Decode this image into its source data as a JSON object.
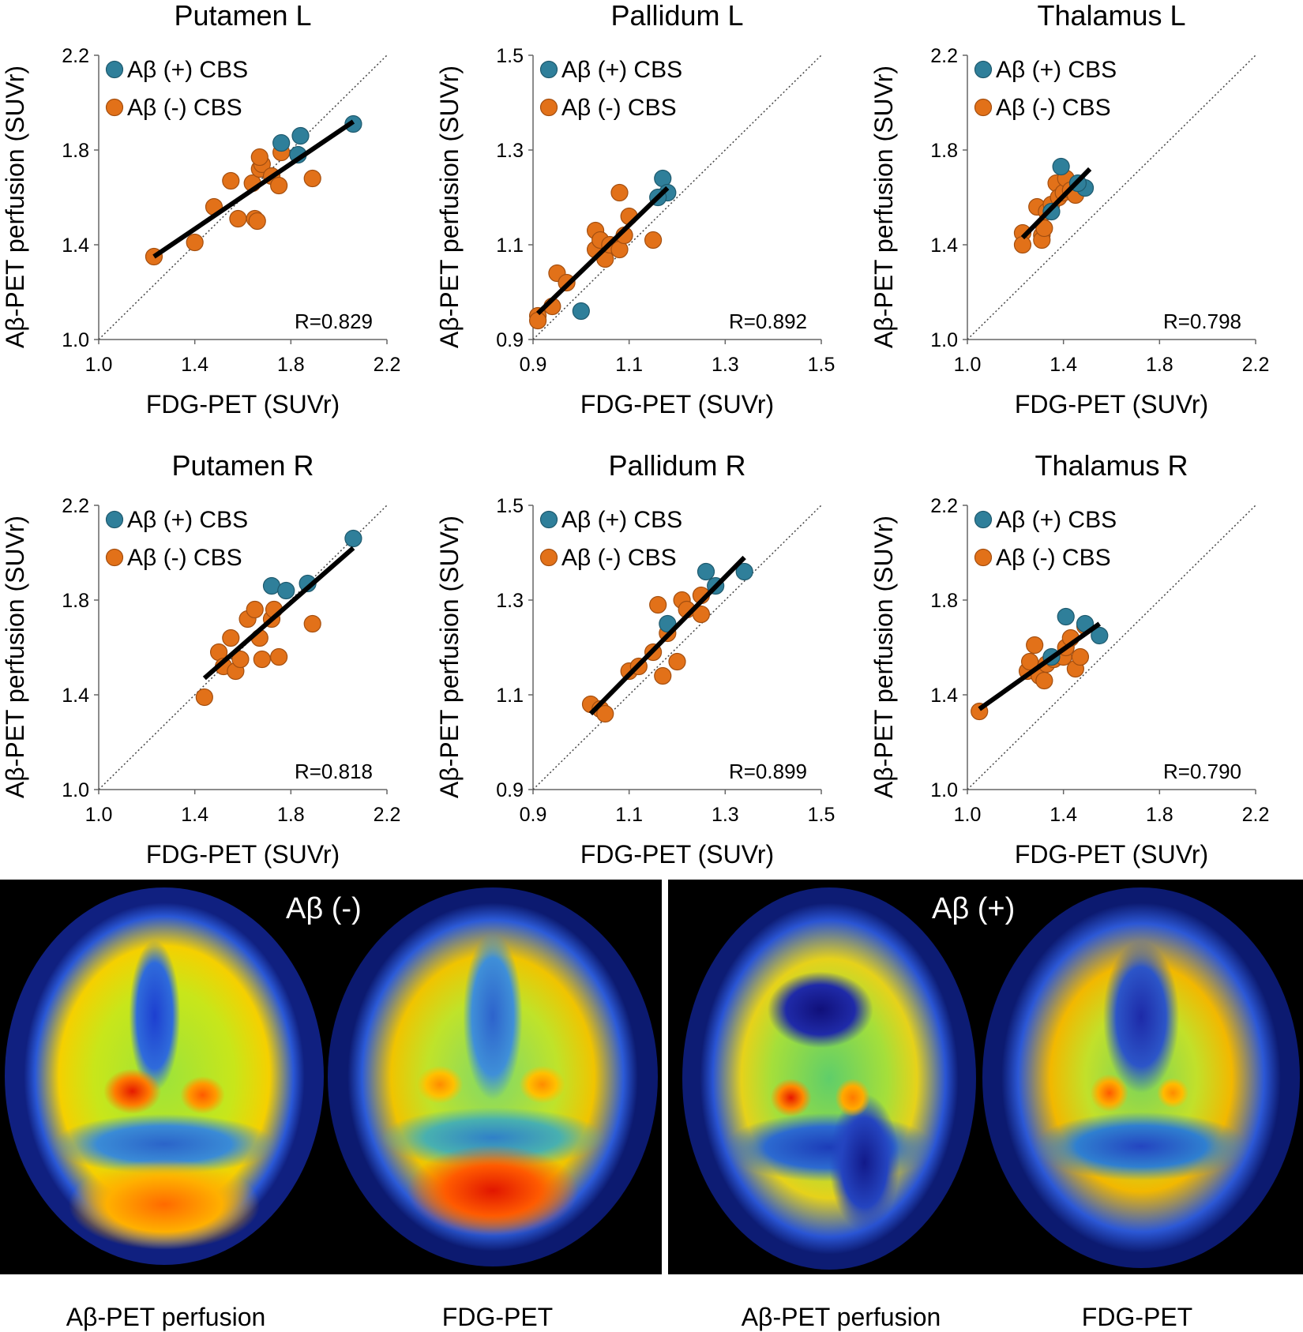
{
  "colors": {
    "positive": "#2f7f9a",
    "negative": "#e27119",
    "positive_edge": "#1f5a6e",
    "negative_edge": "#a44f10",
    "regression": "#000000",
    "identity": "#444444"
  },
  "legend": {
    "positive": "Aβ (+) CBS",
    "negative": "Aβ (-) CBS"
  },
  "chart_data": [
    {
      "type": "scatter",
      "title": "Putamen L",
      "xlabel": "FDG-PET (SUVr)",
      "ylabel": "Aβ-PET perfusion (SUVr)",
      "xlim": [
        1.0,
        2.2
      ],
      "ylim": [
        1.0,
        2.2
      ],
      "xticks": [
        "1.0",
        "1.4",
        "1.8",
        "2.2"
      ],
      "yticks": [
        "1.0",
        "1.4",
        "1.8",
        "2.2"
      ],
      "r_label": "R=0.829",
      "fit": [
        [
          1.23,
          1.35
        ],
        [
          2.06,
          1.92
        ]
      ],
      "positive": [
        [
          2.06,
          1.91
        ],
        [
          1.84,
          1.86
        ],
        [
          1.76,
          1.83
        ],
        [
          1.83,
          1.78
        ]
      ],
      "negative": [
        [
          1.23,
          1.35
        ],
        [
          1.4,
          1.41
        ],
        [
          1.48,
          1.56
        ],
        [
          1.55,
          1.67
        ],
        [
          1.58,
          1.51
        ],
        [
          1.65,
          1.51
        ],
        [
          1.66,
          1.5
        ],
        [
          1.64,
          1.66
        ],
        [
          1.67,
          1.72
        ],
        [
          1.68,
          1.74
        ],
        [
          1.67,
          1.77
        ],
        [
          1.72,
          1.69
        ],
        [
          1.75,
          1.65
        ],
        [
          1.76,
          1.79
        ],
        [
          1.89,
          1.68
        ]
      ]
    },
    {
      "type": "scatter",
      "title": "Pallidum L",
      "xlabel": "FDG-PET (SUVr)",
      "ylabel": "Aβ-PET perfusion (SUVr)",
      "xlim": [
        0.9,
        1.5
      ],
      "ylim": [
        0.9,
        1.5
      ],
      "xticks": [
        "0.9",
        "1.1",
        "1.3",
        "1.5"
      ],
      "yticks": [
        "0.9",
        "1.1",
        "1.3",
        "1.5"
      ],
      "r_label": "R=0.892",
      "fit": [
        [
          0.91,
          0.955
        ],
        [
          1.18,
          1.22
        ]
      ],
      "positive": [
        [
          1.17,
          1.24
        ],
        [
          1.18,
          1.21
        ],
        [
          1.16,
          1.2
        ],
        [
          1.0,
          0.96
        ]
      ],
      "negative": [
        [
          0.91,
          0.95
        ],
        [
          0.91,
          0.94
        ],
        [
          0.94,
          0.97
        ],
        [
          0.95,
          1.04
        ],
        [
          0.97,
          1.02
        ],
        [
          1.03,
          1.13
        ],
        [
          1.03,
          1.09
        ],
        [
          1.04,
          1.11
        ],
        [
          1.05,
          1.07
        ],
        [
          1.06,
          1.1
        ],
        [
          1.08,
          1.09
        ],
        [
          1.09,
          1.12
        ],
        [
          1.1,
          1.16
        ],
        [
          1.08,
          1.21
        ],
        [
          1.15,
          1.11
        ]
      ]
    },
    {
      "type": "scatter",
      "title": "Thalamus L",
      "xlabel": "FDG-PET (SUVr)",
      "ylabel": "Aβ-PET perfusion (SUVr)",
      "xlim": [
        1.0,
        2.2
      ],
      "ylim": [
        1.0,
        2.2
      ],
      "xticks": [
        "1.0",
        "1.4",
        "1.8",
        "2.2"
      ],
      "yticks": [
        "1.0",
        "1.4",
        "1.8",
        "2.2"
      ],
      "r_label": "R=0.798",
      "fit": [
        [
          1.23,
          1.43
        ],
        [
          1.51,
          1.72
        ]
      ],
      "positive": [
        [
          1.39,
          1.73
        ],
        [
          1.49,
          1.64
        ],
        [
          1.46,
          1.66
        ],
        [
          1.35,
          1.54
        ]
      ],
      "negative": [
        [
          1.23,
          1.45
        ],
        [
          1.23,
          1.4
        ],
        [
          1.29,
          1.56
        ],
        [
          1.31,
          1.44
        ],
        [
          1.31,
          1.42
        ],
        [
          1.32,
          1.47
        ],
        [
          1.33,
          1.54
        ],
        [
          1.35,
          1.57
        ],
        [
          1.37,
          1.66
        ],
        [
          1.38,
          1.6
        ],
        [
          1.4,
          1.62
        ],
        [
          1.41,
          1.68
        ],
        [
          1.43,
          1.63
        ],
        [
          1.45,
          1.61
        ]
      ]
    },
    {
      "type": "scatter",
      "title": "Putamen R",
      "xlabel": "FDG-PET (SUVr)",
      "ylabel": "Aβ-PET perfusion (SUVr)",
      "xlim": [
        1.0,
        2.2
      ],
      "ylim": [
        1.0,
        2.2
      ],
      "xticks": [
        "1.0",
        "1.4",
        "1.8",
        "2.2"
      ],
      "yticks": [
        "1.0",
        "1.4",
        "1.8",
        "2.2"
      ],
      "r_label": "R=0.818",
      "fit": [
        [
          1.44,
          1.47
        ],
        [
          2.06,
          2.02
        ]
      ],
      "positive": [
        [
          2.06,
          2.06
        ],
        [
          1.72,
          1.86
        ],
        [
          1.78,
          1.84
        ],
        [
          1.87,
          1.87
        ]
      ],
      "negative": [
        [
          1.44,
          1.39
        ],
        [
          1.5,
          1.58
        ],
        [
          1.52,
          1.52
        ],
        [
          1.55,
          1.64
        ],
        [
          1.57,
          1.5
        ],
        [
          1.59,
          1.55
        ],
        [
          1.62,
          1.72
        ],
        [
          1.65,
          1.76
        ],
        [
          1.67,
          1.64
        ],
        [
          1.68,
          1.55
        ],
        [
          1.72,
          1.72
        ],
        [
          1.73,
          1.76
        ],
        [
          1.75,
          1.56
        ],
        [
          1.89,
          1.7
        ]
      ]
    },
    {
      "type": "scatter",
      "title": "Pallidum R",
      "xlabel": "FDG-PET (SUVr)",
      "ylabel": "Aβ-PET perfusion (SUVr)",
      "xlim": [
        0.9,
        1.5
      ],
      "ylim": [
        0.9,
        1.5
      ],
      "xticks": [
        "0.9",
        "1.1",
        "1.3",
        "1.5"
      ],
      "yticks": [
        "0.9",
        "1.1",
        "1.3",
        "1.5"
      ],
      "r_label": "R=0.899",
      "fit": [
        [
          1.02,
          1.06
        ],
        [
          1.34,
          1.39
        ]
      ],
      "positive": [
        [
          1.34,
          1.36
        ],
        [
          1.26,
          1.36
        ],
        [
          1.28,
          1.33
        ],
        [
          1.18,
          1.25
        ]
      ],
      "negative": [
        [
          1.02,
          1.08
        ],
        [
          1.04,
          1.07
        ],
        [
          1.05,
          1.06
        ],
        [
          1.1,
          1.15
        ],
        [
          1.12,
          1.16
        ],
        [
          1.15,
          1.19
        ],
        [
          1.16,
          1.29
        ],
        [
          1.17,
          1.14
        ],
        [
          1.18,
          1.23
        ],
        [
          1.2,
          1.17
        ],
        [
          1.21,
          1.3
        ],
        [
          1.22,
          1.28
        ],
        [
          1.25,
          1.27
        ],
        [
          1.25,
          1.31
        ]
      ]
    },
    {
      "type": "scatter",
      "title": "Thalamus R",
      "xlabel": "FDG-PET (SUVr)",
      "ylabel": "Aβ-PET perfusion (SUVr)",
      "xlim": [
        1.0,
        2.2
      ],
      "ylim": [
        1.0,
        2.2
      ],
      "xticks": [
        "1.0",
        "1.4",
        "1.8",
        "2.2"
      ],
      "yticks": [
        "1.0",
        "1.4",
        "1.8",
        "2.2"
      ],
      "r_label": "R=0.790",
      "fit": [
        [
          1.05,
          1.34
        ],
        [
          1.55,
          1.7
        ]
      ],
      "positive": [
        [
          1.41,
          1.73
        ],
        [
          1.49,
          1.7
        ],
        [
          1.55,
          1.65
        ],
        [
          1.35,
          1.56
        ]
      ],
      "negative": [
        [
          1.05,
          1.33
        ],
        [
          1.25,
          1.5
        ],
        [
          1.26,
          1.54
        ],
        [
          1.28,
          1.61
        ],
        [
          1.3,
          1.48
        ],
        [
          1.32,
          1.46
        ],
        [
          1.33,
          1.53
        ],
        [
          1.36,
          1.55
        ],
        [
          1.4,
          1.56
        ],
        [
          1.41,
          1.6
        ],
        [
          1.43,
          1.64
        ],
        [
          1.45,
          1.51
        ],
        [
          1.47,
          1.56
        ],
        [
          1.49,
          1.69
        ]
      ]
    }
  ],
  "pet": {
    "neg_label": "Aβ (-)",
    "pos_label": "Aβ (+)",
    "captions": [
      "Aβ-PET perfusion",
      "FDG-PET",
      "Aβ-PET perfusion",
      "FDG-PET"
    ]
  }
}
